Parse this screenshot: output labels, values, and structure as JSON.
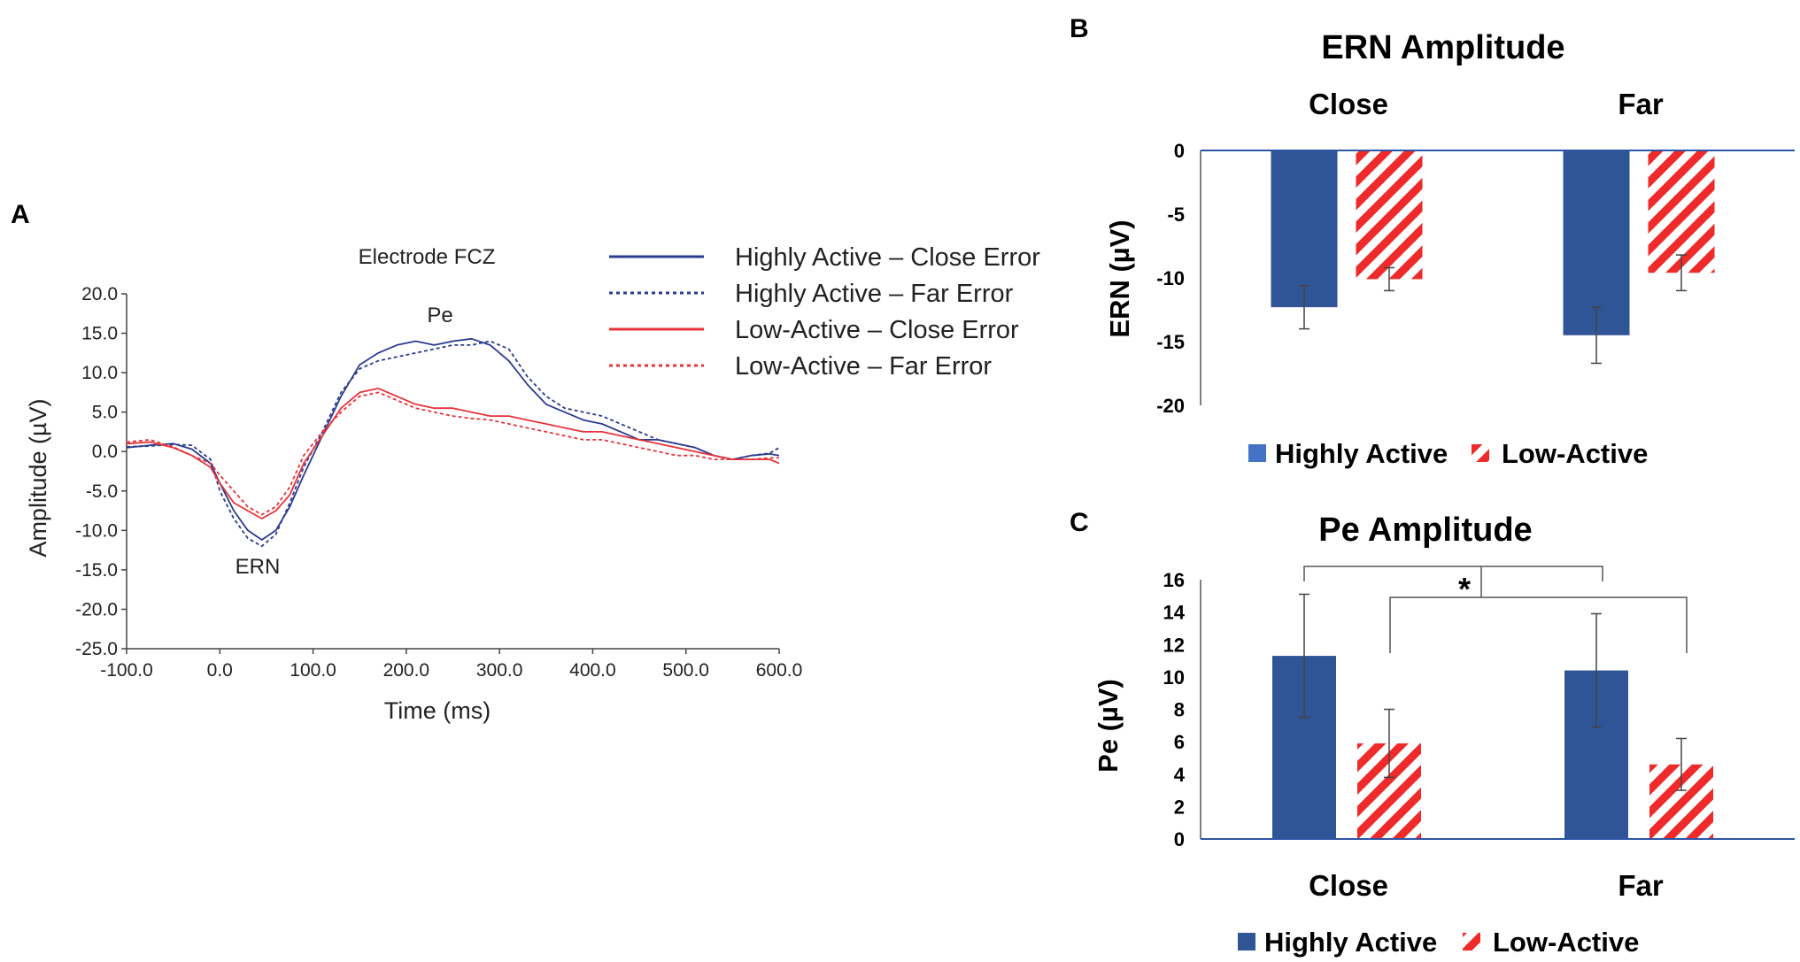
{
  "panels": {
    "a": "A",
    "b": "B",
    "c": "C"
  },
  "chart_data": [
    {
      "type": "line",
      "title": "Electrode FCZ",
      "xlabel": "Time (ms)",
      "ylabel": "Amplitude (µV)",
      "xlim": [
        -100,
        600
      ],
      "ylim": [
        -25,
        20
      ],
      "x_ticks": [
        "-100.0",
        "0.0",
        "100.0",
        "200.0",
        "300.0",
        "400.0",
        "500.0",
        "600.0"
      ],
      "y_ticks": [
        "20.0",
        "15.0",
        "10.0",
        "5.0",
        "0.0",
        "-5.0",
        "-10.0",
        "-15.0",
        "-20.0",
        "-25.0"
      ],
      "annotations": {
        "ern": "ERN",
        "pe": "Pe"
      },
      "colors": {
        "highly_active": "#2b3b8f",
        "low_active": "#e8333a"
      },
      "x": [
        -100,
        -75,
        -50,
        -30,
        -10,
        0,
        15,
        30,
        45,
        60,
        75,
        90,
        110,
        130,
        150,
        170,
        190,
        210,
        230,
        250,
        270,
        290,
        310,
        330,
        350,
        370,
        390,
        410,
        430,
        450,
        470,
        490,
        510,
        530,
        550,
        570,
        590,
        600
      ],
      "series": [
        {
          "name": "Highly Active – Close Error",
          "style": "solid",
          "color": "#2b3b8f",
          "values": [
            0.5,
            0.8,
            1.0,
            0.3,
            -1.5,
            -4.0,
            -7.5,
            -10.0,
            -11.2,
            -10.0,
            -7.0,
            -3.0,
            2.0,
            7.0,
            11.0,
            12.5,
            13.5,
            14.0,
            13.5,
            14.0,
            14.3,
            13.5,
            11.5,
            8.5,
            6.0,
            5.0,
            4.0,
            3.5,
            2.5,
            1.5,
            1.5,
            1.0,
            0.5,
            -0.5,
            -1.0,
            -0.5,
            -0.3,
            -0.5
          ]
        },
        {
          "name": "Highly Active – Far Error",
          "style": "dotted",
          "color": "#2b3b8f",
          "values": [
            0.6,
            0.7,
            0.9,
            0.8,
            -1.0,
            -5.0,
            -8.5,
            -11.0,
            -12.0,
            -10.5,
            -6.5,
            -2.0,
            2.5,
            7.5,
            10.5,
            11.5,
            12.0,
            12.5,
            13.0,
            13.5,
            13.5,
            14.0,
            13.0,
            9.5,
            7.0,
            5.5,
            5.0,
            4.5,
            3.5,
            2.5,
            1.5,
            1.0,
            0.5,
            -0.5,
            -1.0,
            -0.5,
            -0.2,
            0.5
          ]
        },
        {
          "name": "Low-Active – Close Error",
          "style": "solid",
          "color": "#e8333a",
          "values": [
            1.0,
            1.2,
            0.5,
            -0.5,
            -2.0,
            -4.0,
            -6.5,
            -7.5,
            -8.5,
            -7.5,
            -5.5,
            -1.5,
            2.0,
            5.5,
            7.5,
            8.0,
            7.0,
            6.0,
            5.5,
            5.5,
            5.0,
            4.5,
            4.5,
            4.0,
            3.5,
            3.0,
            2.5,
            2.5,
            2.0,
            1.5,
            1.0,
            0.5,
            0.0,
            -0.5,
            -1.0,
            -1.0,
            -1.0,
            -1.5
          ]
        },
        {
          "name": "Low-Active – Far Error",
          "style": "dotted",
          "color": "#e8333a",
          "values": [
            1.2,
            1.5,
            0.6,
            -0.5,
            -1.5,
            -3.0,
            -5.0,
            -7.0,
            -8.0,
            -7.0,
            -4.5,
            -0.5,
            2.5,
            5.0,
            7.0,
            7.5,
            6.5,
            5.5,
            5.0,
            4.5,
            4.2,
            4.0,
            3.5,
            3.0,
            2.5,
            2.0,
            1.5,
            1.5,
            1.0,
            0.5,
            0.0,
            -0.5,
            -0.5,
            -1.0,
            -1.0,
            -1.0,
            -0.8,
            -0.8
          ]
        }
      ]
    },
    {
      "type": "bar",
      "title": "ERN Amplitude",
      "ylabel": "ERN (µV)",
      "categories": [
        "Close",
        "Far"
      ],
      "ylim": [
        -20,
        0
      ],
      "y_ticks": [
        "0",
        "-5",
        "-10",
        "-15",
        "-20"
      ],
      "legend": [
        "Highly Active",
        "Low-Active"
      ],
      "colors": {
        "highly_active": "#2f5597",
        "highly_active_legend": "#4472c4",
        "low_active": "#ee2a2a"
      },
      "series": [
        {
          "name": "Highly Active",
          "values": [
            -12.3,
            -14.5
          ],
          "errors": [
            1.7,
            2.2
          ]
        },
        {
          "name": "Low-Active",
          "values": [
            -10.1,
            -9.6
          ],
          "errors": [
            0.9,
            1.4
          ]
        }
      ]
    },
    {
      "type": "bar",
      "title": "Pe Amplitude",
      "ylabel": "Pe (µV)",
      "categories": [
        "Close",
        "Far"
      ],
      "ylim": [
        0,
        16
      ],
      "y_ticks": [
        "16",
        "14",
        "12",
        "10",
        "8",
        "6",
        "4",
        "2",
        "0"
      ],
      "legend": [
        "Highly Active",
        "Low-Active"
      ],
      "significance": "*",
      "colors": {
        "highly_active": "#2f5597",
        "low_active": "#ee2a2a"
      },
      "series": [
        {
          "name": "Highly Active",
          "values": [
            11.3,
            10.4
          ],
          "errors": [
            3.8,
            3.5
          ]
        },
        {
          "name": "Low-Active",
          "values": [
            5.9,
            4.6
          ],
          "errors": [
            2.1,
            1.6
          ]
        }
      ]
    }
  ]
}
